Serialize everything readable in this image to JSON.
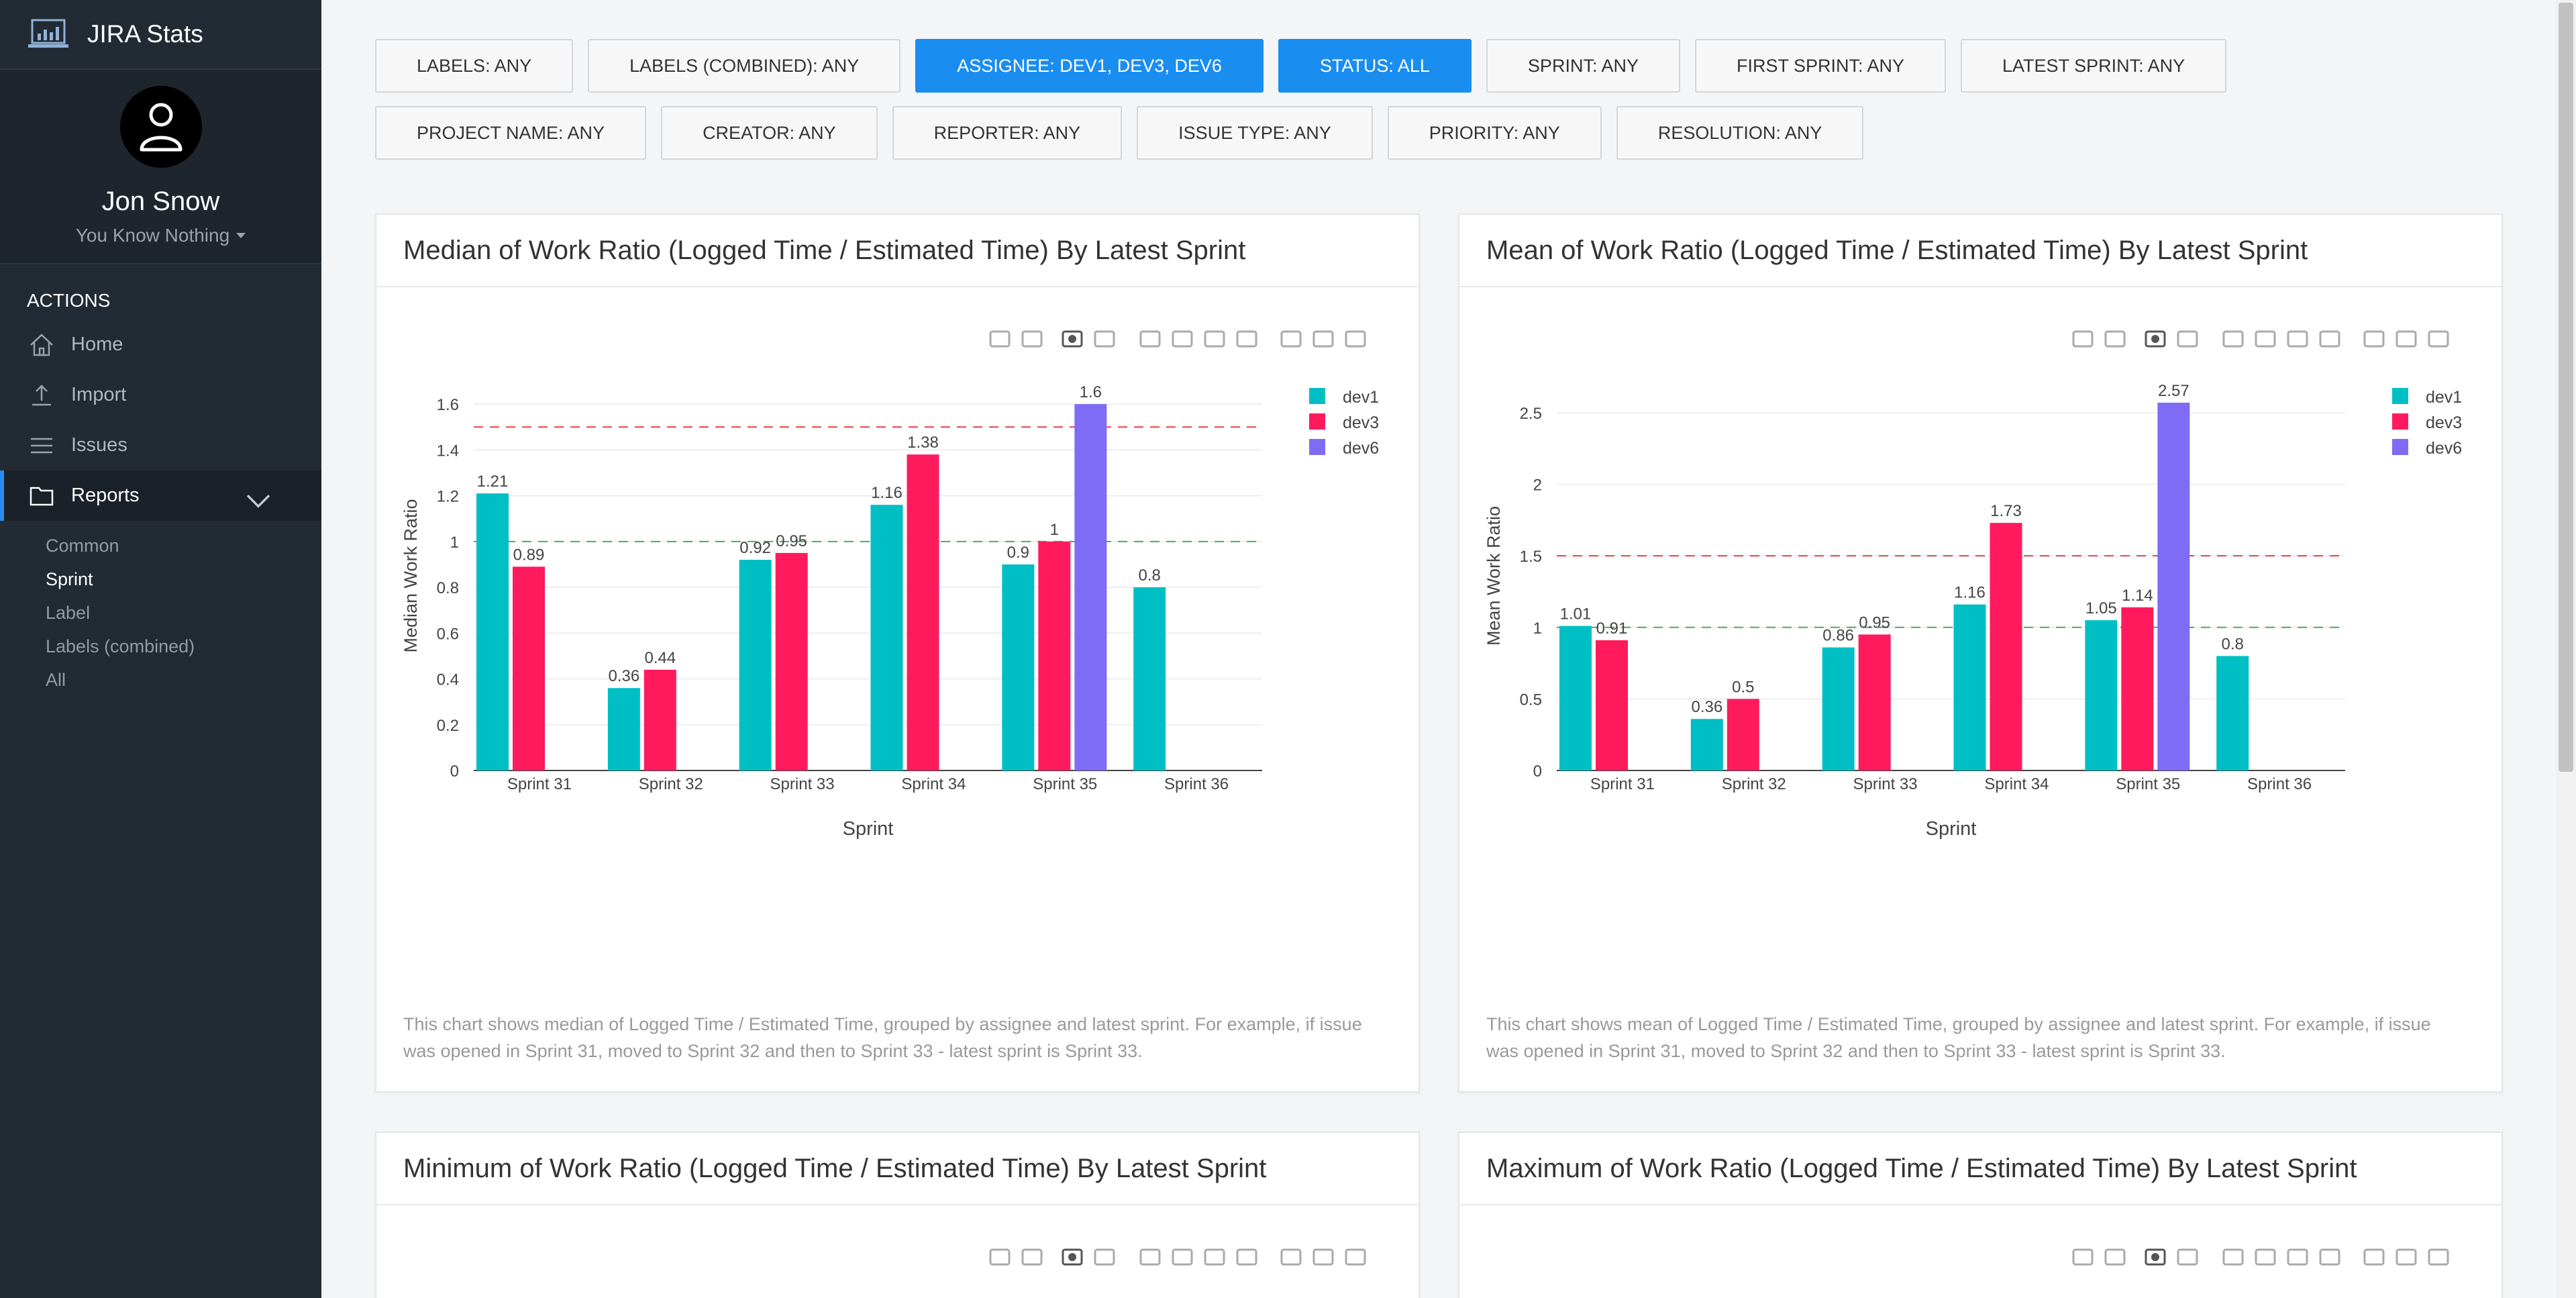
{
  "app": {
    "title": "JIRA Stats"
  },
  "user": {
    "name": "Jon Snow",
    "subtitle": "You Know Nothing"
  },
  "sidebar": {
    "section_title": "ACTIONS",
    "items": [
      {
        "label": "Home",
        "icon": "home-icon"
      },
      {
        "label": "Import",
        "icon": "upload-icon"
      },
      {
        "label": "Issues",
        "icon": "list-icon"
      },
      {
        "label": "Reports",
        "icon": "folder-icon"
      }
    ],
    "subitems": [
      {
        "label": "Common"
      },
      {
        "label": "Sprint"
      },
      {
        "label": "Label"
      },
      {
        "label": "Labels (combined)"
      },
      {
        "label": "All"
      }
    ]
  },
  "filters": {
    "row1": [
      "LABELS: ANY",
      "LABELS (COMBINED): ANY",
      "ASSIGNEE: DEV1, DEV3, DEV6",
      "STATUS: ALL",
      "SPRINT: ANY",
      "FIRST SPRINT: ANY",
      "LATEST SPRINT: ANY"
    ],
    "row2": [
      "PROJECT NAME: ANY",
      "CREATOR: ANY",
      "REPORTER: ANY",
      "ISSUE TYPE: ANY",
      "PRIORITY: ANY",
      "RESOLUTION: ANY"
    ]
  },
  "colors": {
    "accent": "#1a8df0",
    "dev1": "#00bfc4",
    "dev3": "#ff1a5e",
    "dev6": "#7f6cf5",
    "ref_red": "#e8413e",
    "ref_green": "#55a868"
  },
  "panels": [
    {
      "title": "Median of Work Ratio (Logged Time / Estimated Time) By Latest Sprint",
      "description": "This chart shows median of Logged Time / Estimated Time, grouped by assignee and latest sprint. For example, if issue was opened in Sprint 31, moved to Sprint 32 and then to Sprint 33 - latest sprint is Sprint 33."
    },
    {
      "title": "Mean of Work Ratio (Logged Time / Estimated Time) By Latest Sprint",
      "description": "This chart shows mean of Logged Time / Estimated Time, grouped by assignee and latest sprint. For example, if issue was opened in Sprint 31, moved to Sprint 32 and then to Sprint 33 - latest sprint is Sprint 33."
    },
    {
      "title": "Minimum of Work Ratio (Logged Time / Estimated Time) By Latest Sprint",
      "description": ""
    },
    {
      "title": "Maximum of Work Ratio (Logged Time / Estimated Time) By Latest Sprint",
      "description": ""
    }
  ],
  "chart_data": [
    {
      "type": "bar",
      "title": "",
      "xlabel": "Sprint",
      "ylabel": "Median Work Ratio",
      "categories": [
        "Sprint 31",
        "Sprint 32",
        "Sprint 33",
        "Sprint 34",
        "Sprint 35",
        "Sprint 36"
      ],
      "ylim": [
        0,
        1.7
      ],
      "yticks": [
        0,
        0.2,
        0.4,
        0.6,
        0.8,
        1,
        1.2,
        1.4,
        1.6
      ],
      "ref_lines": [
        1.5,
        1
      ],
      "legend_position": "top-right",
      "grid": true,
      "series": [
        {
          "name": "dev1",
          "values": [
            1.21,
            0.36,
            0.92,
            1.16,
            0.9,
            0.8
          ],
          "labels": [
            "1.21",
            "0.36",
            "0.92",
            "1.16",
            "0.9",
            "0.8"
          ]
        },
        {
          "name": "dev3",
          "values": [
            0.89,
            0.44,
            0.95,
            1.38,
            1,
            null
          ],
          "labels": [
            "0.89",
            "0.44",
            "0.95",
            "1.38",
            "1",
            ""
          ]
        },
        {
          "name": "dev6",
          "values": [
            null,
            null,
            null,
            null,
            1.6,
            null
          ],
          "labels": [
            "",
            "",
            "",
            "",
            "1.6",
            ""
          ]
        }
      ]
    },
    {
      "type": "bar",
      "title": "",
      "xlabel": "Sprint",
      "ylabel": "Mean Work Ratio",
      "categories": [
        "Sprint 31",
        "Sprint 32",
        "Sprint 33",
        "Sprint 34",
        "Sprint 35",
        "Sprint 36"
      ],
      "ylim": [
        0,
        2.72
      ],
      "yticks": [
        0,
        0.5,
        1,
        1.5,
        2,
        2.5
      ],
      "ref_lines": [
        1.5,
        1
      ],
      "legend_position": "top-right",
      "grid": true,
      "series": [
        {
          "name": "dev1",
          "values": [
            1.01,
            0.36,
            0.86,
            1.16,
            1.05,
            0.8
          ],
          "labels": [
            "1.01",
            "0.36",
            "0.86",
            "1.16",
            "1.05",
            "0.8"
          ]
        },
        {
          "name": "dev3",
          "values": [
            0.91,
            0.5,
            0.95,
            1.73,
            1.14,
            null
          ],
          "labels": [
            "0.91",
            "0.5",
            "0.95",
            "1.73",
            "1.14",
            ""
          ]
        },
        {
          "name": "dev6",
          "values": [
            null,
            null,
            null,
            null,
            2.57,
            null
          ],
          "labels": [
            "",
            "",
            "",
            "",
            "2.57",
            ""
          ]
        }
      ]
    }
  ]
}
